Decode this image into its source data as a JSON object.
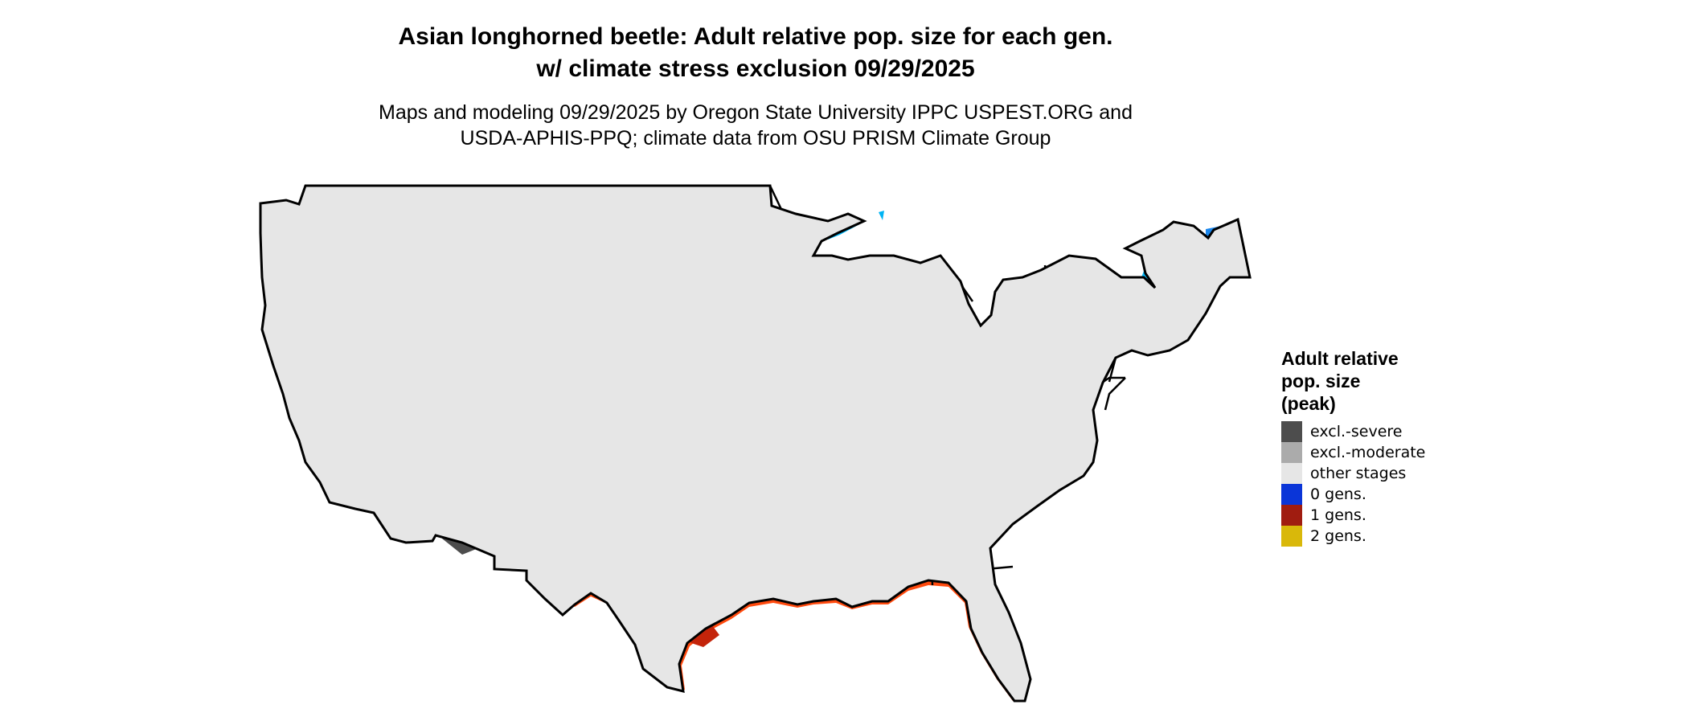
{
  "title": {
    "line1": "Asian longhorned beetle: Adult relative pop. size for each gen.",
    "line2": "w/ climate stress exclusion 09/29/2025"
  },
  "subtitle": {
    "line1": "Maps and modeling 09/29/2025 by Oregon State University IPPC USPEST.ORG and",
    "line2": "USDA-APHIS-PPQ; climate data from OSU PRISM Climate Group"
  },
  "legend": {
    "title_lines": [
      "Adult relative",
      "pop. size",
      "(peak)"
    ],
    "items": [
      {
        "label": "excl.-severe",
        "color": "#4d4d4d"
      },
      {
        "label": "excl.-moderate",
        "color": "#ababab"
      },
      {
        "label": "other stages",
        "color": "#e6e6e6"
      },
      {
        "label": "0 gens.",
        "color": "#0a35d8"
      },
      {
        "label": "1 gens.",
        "color": "#a01c10"
      },
      {
        "label": "2 gens.",
        "color": "#d9b80a"
      }
    ]
  },
  "map_colors": {
    "base": "#e6e6e6",
    "cold_light": "#00b4f4",
    "cold_mid": "#1a86ec",
    "cold_dark": "#0a35d8",
    "warm": "#ff4a0e",
    "warm_dark": "#c4240a",
    "excl_severe": "#4d4d4d",
    "excl_moderate": "#ababab",
    "border": "#000000"
  }
}
